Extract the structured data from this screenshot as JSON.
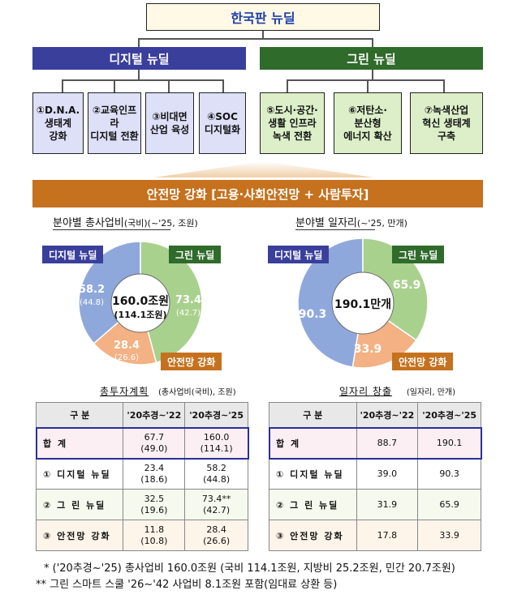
{
  "title": "한국판 뉴딜",
  "digital": {
    "label": "디지털 뉴딜",
    "items": [
      "①D.N.A.\n생태계\n강화",
      "②교육인프라\n디지털 전환",
      "③비대면\n산업 육성",
      "④SOC\n디지털화"
    ]
  },
  "green": {
    "label": "그린 뉴딜",
    "items": [
      "⑤도시·공간·\n생활 인프라\n녹색 전환",
      "⑥저탄소·\n분산형\n에너지 확산",
      "⑦녹색산업\n혁신 생태계\n구축"
    ]
  },
  "safety_banner": "안전망 강화 [고용·사회안전망 + 사람투자]",
  "pie_left": {
    "title": "분야별 총사업비",
    "title_suffix": "(국비)(~'25, 조원)",
    "center_main": "160.0조원",
    "center_sub": "(114.1조원)",
    "tags": {
      "digital": "디지털 뉴딜",
      "green": "그린 뉴딜",
      "safety": "안전망 강화"
    },
    "values": {
      "digital": "58.2",
      "digital_sub": "(44.8)",
      "green": "73.4",
      "green_sub": "(42.7)",
      "safety": "28.4",
      "safety_sub": "(26.6)"
    }
  },
  "pie_right": {
    "title": "분야별 일자리",
    "title_suffix": "(~'25, 만개)",
    "center_main": "190.1만개",
    "tags": {
      "digital": "디지털 뉴딜",
      "green": "그린 뉴딜",
      "safety": "안전망 강화"
    },
    "values": {
      "digital": "90.3",
      "green": "65.9",
      "safety": "33.9"
    }
  },
  "colors": {
    "digital": "#8fa8dc",
    "green": "#a9d18e",
    "safety": "#f4b183",
    "center": "#ffffff"
  },
  "table_left": {
    "caption": "총투자계획",
    "caption_unit": "(총사업비(국비), 조원)",
    "headers": [
      "구  분",
      "'20추경~'22",
      "'20추경~'25"
    ],
    "rows": [
      {
        "label": "합   계",
        "a": "67.7",
        "a2": "(49.0)",
        "b": "160.0",
        "b2": "(114.1)"
      },
      {
        "label": "① 디지털 뉴딜",
        "a": "23.4",
        "a2": "(18.6)",
        "b": "58.2",
        "b2": "(44.8)"
      },
      {
        "label": "② 그 린 뉴딜",
        "a": "32.5",
        "a2": "(19.6)",
        "b": "73.4**",
        "b2": "(42.7)"
      },
      {
        "label": "③ 안전망 강화",
        "a": "11.8",
        "a2": "(10.8)",
        "b": "28.4",
        "b2": "(26.6)"
      }
    ]
  },
  "table_right": {
    "caption": "일자리 창출",
    "caption_unit": "(일자리, 만개)",
    "headers": [
      "구  분",
      "'20추경~'22",
      "'20추경~'25"
    ],
    "rows": [
      {
        "label": "합   계",
        "a": "88.7",
        "b": "190.1"
      },
      {
        "label": "① 디지털 뉴딜",
        "a": "39.0",
        "b": "90.3"
      },
      {
        "label": "② 그 린 뉴딜",
        "a": "31.9",
        "b": "65.9"
      },
      {
        "label": "③ 안전망 강화",
        "a": "17.8",
        "b": "33.9"
      }
    ]
  },
  "footnotes": [
    "* ('20추경~'25) 총사업비 160.0조원 (국비 114.1조원, 지방비 25.2조원, 민간 20.7조원)",
    "** 그린 스마트 스쿨 '26~'42 사업비 8.1조원 포함(임대료 상환 등)"
  ]
}
